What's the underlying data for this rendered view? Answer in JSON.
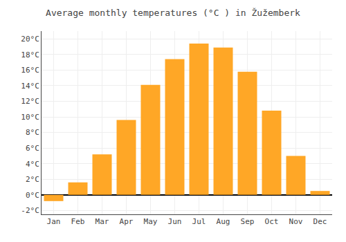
{
  "chart_data": {
    "type": "bar",
    "title": "Average monthly temperatures (°C ) in Žužemberk",
    "categories": [
      "Jan",
      "Feb",
      "Mar",
      "Apr",
      "May",
      "Jun",
      "Jul",
      "Aug",
      "Sep",
      "Oct",
      "Nov",
      "Dec"
    ],
    "values": [
      -0.8,
      1.6,
      5.2,
      9.6,
      14.1,
      17.4,
      19.4,
      18.9,
      15.8,
      10.8,
      5.0,
      0.5
    ],
    "color": "#FFA726",
    "ylim": [
      -2.5,
      21.0
    ],
    "yticks": [
      {
        "value": -2,
        "label": "-2°C"
      },
      {
        "value": 0,
        "label": "0°C"
      },
      {
        "value": 2,
        "label": "2°C"
      },
      {
        "value": 4,
        "label": "4°C"
      },
      {
        "value": 6,
        "label": "6°C"
      },
      {
        "value": 8,
        "label": "8°C"
      },
      {
        "value": 10,
        "label": "10°C"
      },
      {
        "value": 12,
        "label": "12°C"
      },
      {
        "value": 14,
        "label": "14°C"
      },
      {
        "value": 16,
        "label": "16°C"
      },
      {
        "value": 18,
        "label": "18°C"
      },
      {
        "value": 20,
        "label": "20°C"
      }
    ],
    "grid": true
  }
}
